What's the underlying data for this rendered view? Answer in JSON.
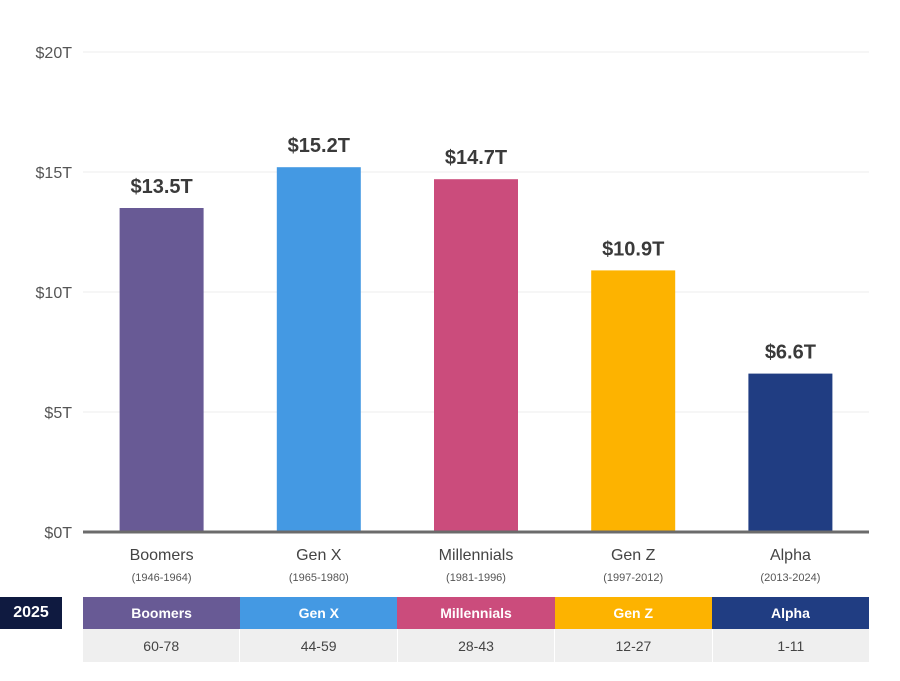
{
  "chart_data": {
    "type": "bar",
    "categories": [
      "Boomers",
      "Gen X",
      "Millennials",
      "Gen Z",
      "Alpha"
    ],
    "category_years": [
      "(1946-1964)",
      "(1965-1980)",
      "(1981-1996)",
      "(1997-2012)",
      "(2013-2024)"
    ],
    "values": [
      13.5,
      15.2,
      14.7,
      10.9,
      6.6
    ],
    "data_labels": [
      "$13.5T",
      "$15.2T",
      "$14.7T",
      "$10.9T",
      "$6.6T"
    ],
    "colors": [
      "#685a95",
      "#4499e3",
      "#cb4c7c",
      "#fdb300",
      "#203d82"
    ],
    "y_ticks": [
      {
        "value": 0,
        "label": "$0T"
      },
      {
        "value": 5,
        "label": "$5T"
      },
      {
        "value": 10,
        "label": "$10T"
      },
      {
        "value": 15,
        "label": "$15T"
      },
      {
        "value": 20,
        "label": "$20T"
      }
    ],
    "ylim": [
      0,
      20
    ],
    "grid": true,
    "legend": "none"
  },
  "age_table": {
    "year_label": "2025",
    "generations": [
      "Boomers",
      "Gen X",
      "Millennials",
      "Gen Z",
      "Alpha"
    ],
    "ages": [
      "60-78",
      "44-59",
      "28-43",
      "12-27",
      "1-11"
    ]
  }
}
